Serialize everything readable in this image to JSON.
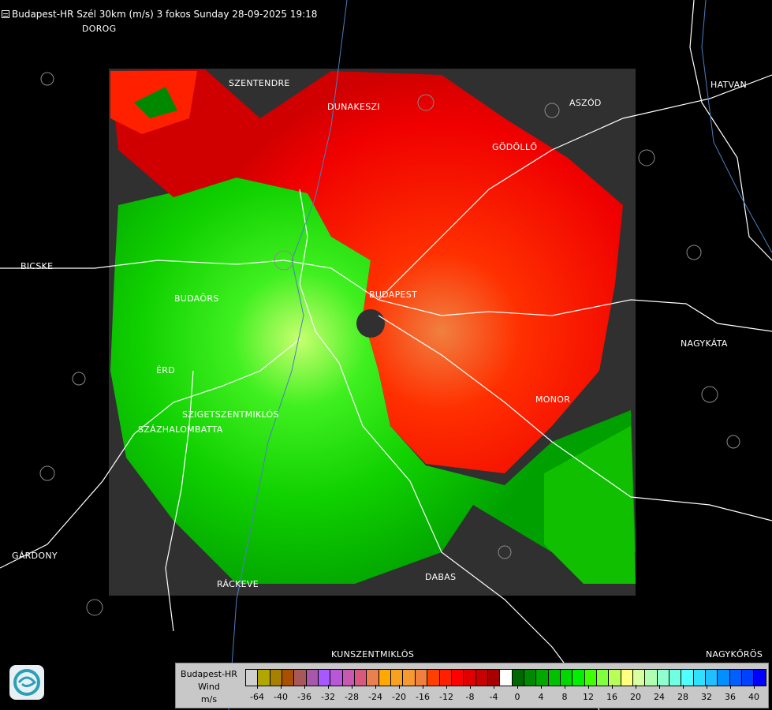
{
  "header": {
    "icon": "document-icon",
    "title": "Budapest-HR Szél 30km (m/s) 3 fokos Sunday 28-09-2025 19:18"
  },
  "map": {
    "towns": [
      {
        "id": "dorog",
        "name": "DOROG"
      },
      {
        "id": "szentendre",
        "name": "SZENTENDRE"
      },
      {
        "id": "dunakeszi",
        "name": "DUNAKESZI"
      },
      {
        "id": "aszod",
        "name": "ASZÓD"
      },
      {
        "id": "hatvan",
        "name": "HATVAN"
      },
      {
        "id": "godollo",
        "name": "GÖDÖLLŐ"
      },
      {
        "id": "bicske",
        "name": "BICSKE"
      },
      {
        "id": "budaors",
        "name": "BUDAÖRS"
      },
      {
        "id": "budapest",
        "name": "BUDAPEST"
      },
      {
        "id": "nagykata",
        "name": "NAGYKÁTA"
      },
      {
        "id": "erd",
        "name": "ÉRD"
      },
      {
        "id": "szigetszentmiklos",
        "name": "SZIGETSZENTMIKLÓS"
      },
      {
        "id": "szazhalombatta",
        "name": "SZÁZHALOMBATTA"
      },
      {
        "id": "monor",
        "name": "MONOR"
      },
      {
        "id": "gardony",
        "name": "GÁRDONY"
      },
      {
        "id": "rackeve",
        "name": "RÁCKEVE"
      },
      {
        "id": "dabas",
        "name": "DABAS"
      },
      {
        "id": "kunszentmiklos",
        "name": "KUNSZENTMIKLÓS"
      },
      {
        "id": "nagykoros",
        "name": "NAGYKŐRÖS"
      }
    ],
    "colors": {
      "background": "#000000",
      "no_data": "#303030",
      "approaching": "#00c000",
      "receding": "#ff2000",
      "roads": "#ffffff",
      "rivers": "#4a7fc0",
      "borders": "#909090"
    }
  },
  "legend": {
    "station": "Budapest-HR",
    "quantity": "Wind",
    "unit": "m/s",
    "colors": [
      "#d0d0d0",
      "#b0a800",
      "#a88000",
      "#a85000",
      "#a85858",
      "#a858a8",
      "#a858ff",
      "#b858d8",
      "#c858b0",
      "#d85880",
      "#e88050",
      "#ffa800",
      "#f8a020",
      "#f89830",
      "#f08040",
      "#ff4000",
      "#ff2000",
      "#ff0000",
      "#e00000",
      "#c80000",
      "#a80000",
      "#ffffff",
      "#006800",
      "#008800",
      "#00a800",
      "#00c000",
      "#00d800",
      "#00f000",
      "#40ff00",
      "#80ff40",
      "#b8ff58",
      "#ffff80",
      "#d8ffa0",
      "#b0ffb0",
      "#90ffd0",
      "#70ffe0",
      "#50ffff",
      "#30e0ff",
      "#20c0ff",
      "#0090ff",
      "#0060ff",
      "#0040ff",
      "#0000ff"
    ],
    "ticks": [
      "-64",
      "-40",
      "-36",
      "-32",
      "-28",
      "-24",
      "-20",
      "-16",
      "-12",
      "-8",
      "-4",
      "0",
      "4",
      "8",
      "12",
      "16",
      "20",
      "24",
      "28",
      "32",
      "36",
      "40"
    ]
  },
  "logo": {
    "icon": "weather-service-logo-icon"
  }
}
